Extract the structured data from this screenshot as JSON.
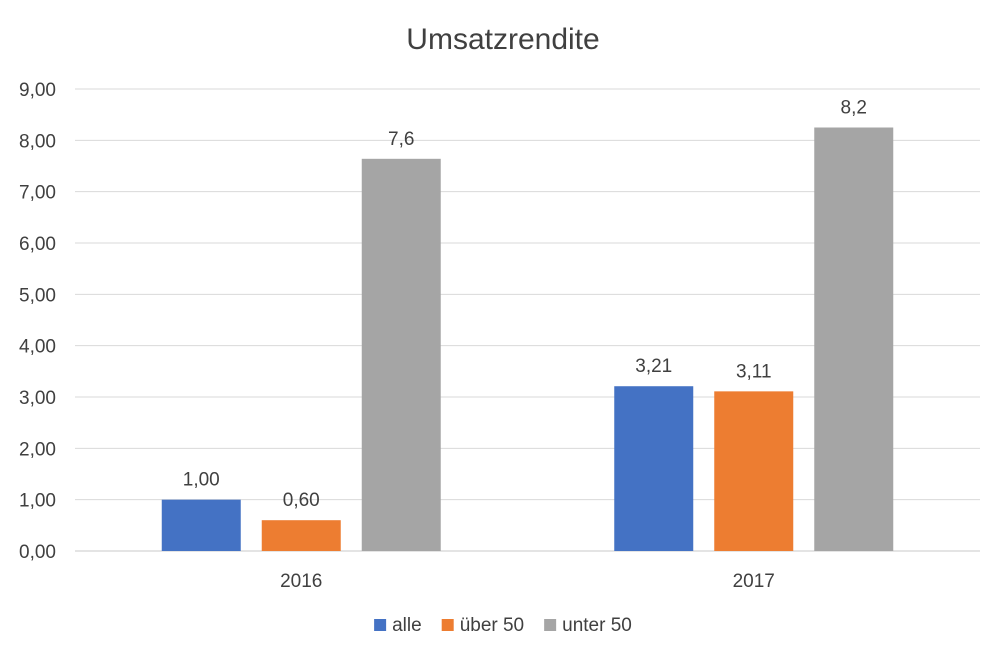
{
  "chart_data": {
    "type": "bar",
    "title": "Umsatzrendite",
    "categories": [
      "2016",
      "2017"
    ],
    "series": [
      {
        "name": "alle",
        "color": "#4472C4",
        "values": [
          1.0,
          3.21
        ],
        "labels": [
          "1,00",
          "3,21"
        ]
      },
      {
        "name": "über 50",
        "color": "#ED7D31",
        "values": [
          0.6,
          3.11
        ],
        "labels": [
          "0,60",
          "3,11"
        ]
      },
      {
        "name": "unter 50",
        "color": "#A5A5A5",
        "values": [
          7.64,
          8.25
        ],
        "labels": [
          "7,6",
          "8,2"
        ]
      }
    ],
    "ylim": [
      0,
      9
    ],
    "yticks": [
      "0,00",
      "1,00",
      "2,00",
      "3,00",
      "4,00",
      "5,00",
      "6,00",
      "7,00",
      "8,00",
      "9,00"
    ],
    "grid": true,
    "legend_position": "bottom"
  }
}
